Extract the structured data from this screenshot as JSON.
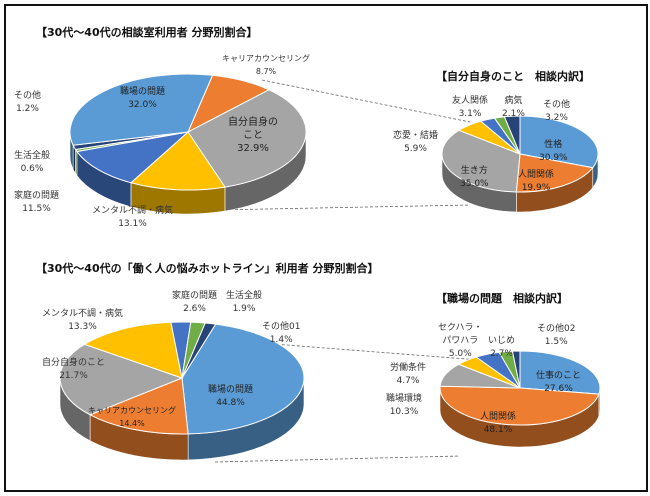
{
  "chart_data": [
    {
      "type": "pie",
      "title": "【30代～40代の相談室利用者 分野別割合】",
      "slices": [
        {
          "label": "キャリアカウンセリング",
          "value": 8.7,
          "pct": "8.7%",
          "color": "#ED7D31"
        },
        {
          "label": "自分自身のこと",
          "value": 32.9,
          "pct": "32.9%",
          "color": "#A5A5A5"
        },
        {
          "label": "メンタル不調・病気",
          "value": 13.1,
          "pct": "13.1%",
          "color": "#FFC000"
        },
        {
          "label": "家庭の問題",
          "value": 11.5,
          "pct": "11.5%",
          "color": "#4472C4"
        },
        {
          "label": "生活全般",
          "value": 0.6,
          "pct": "0.6%",
          "color": "#70AD47"
        },
        {
          "label": "その他",
          "value": 1.2,
          "pct": "1.2%",
          "color": "#264478"
        },
        {
          "label": "職場の問題",
          "value": 32.0,
          "pct": "32.0%",
          "color": "#5B9BD5"
        }
      ]
    },
    {
      "type": "pie",
      "title": "【自分自身のこと　相談内訳】",
      "slices": [
        {
          "label": "性格",
          "value": 30.9,
          "pct": "30.9%",
          "color": "#5B9BD5"
        },
        {
          "label": "人間関係",
          "value": 19.9,
          "pct": "19.9%",
          "color": "#ED7D31"
        },
        {
          "label": "生き方",
          "value": 35.0,
          "pct": "35.0%",
          "color": "#A5A5A5"
        },
        {
          "label": "恋愛・結婚",
          "value": 5.9,
          "pct": "5.9%",
          "color": "#FFC000"
        },
        {
          "label": "友人関係",
          "value": 3.1,
          "pct": "3.1%",
          "color": "#4472C4"
        },
        {
          "label": "病気",
          "value": 2.1,
          "pct": "2.1%",
          "color": "#70AD47"
        },
        {
          "label": "その他",
          "value": 3.2,
          "pct": "3.2%",
          "color": "#264478"
        }
      ]
    },
    {
      "type": "pie",
      "title": "【30代～40代の「働く人の悩みホットライン」利用者 分野別割合】",
      "slices": [
        {
          "label": "職場の問題",
          "value": 44.8,
          "pct": "44.8%",
          "color": "#5B9BD5"
        },
        {
          "label": "キャリアカウンセリング",
          "value": 14.4,
          "pct": "14.4%",
          "color": "#ED7D31"
        },
        {
          "label": "自分自身のこと",
          "value": 21.7,
          "pct": "21.7%",
          "color": "#A5A5A5"
        },
        {
          "label": "メンタル不調・病気",
          "value": 13.3,
          "pct": "13.3%",
          "color": "#FFC000"
        },
        {
          "label": "家庭の問題",
          "value": 2.6,
          "pct": "2.6%",
          "color": "#4472C4"
        },
        {
          "label": "生活全般",
          "value": 1.9,
          "pct": "1.9%",
          "color": "#70AD47"
        },
        {
          "label": "その他01",
          "value": 1.4,
          "pct": "1.4%",
          "color": "#264478"
        }
      ]
    },
    {
      "type": "pie",
      "title": "【職場の問題　相談内訳】",
      "slices": [
        {
          "label": "仕事のこと",
          "value": 27.6,
          "pct": "27.6%",
          "color": "#5B9BD5"
        },
        {
          "label": "人間関係",
          "value": 48.1,
          "pct": "48.1%",
          "color": "#ED7D31"
        },
        {
          "label": "職場環境",
          "value": 10.3,
          "pct": "10.3%",
          "color": "#A5A5A5"
        },
        {
          "label": "労働条件",
          "value": 4.7,
          "pct": "4.7%",
          "color": "#FFC000"
        },
        {
          "label": "セクハラ・パワハラ",
          "value": 5.0,
          "pct": "5.0%",
          "color": "#4472C4"
        },
        {
          "label": "いじめ",
          "value": 2.7,
          "pct": "2.7%",
          "color": "#70AD47"
        },
        {
          "label": "その他02",
          "value": 1.5,
          "pct": "1.5%",
          "color": "#264478"
        }
      ]
    }
  ],
  "label_lines": {
    "sekuhara_1": "セクハラ・",
    "sekuhara_2": "パワハラ",
    "jibun_1": "自分自身の",
    "jibun_2": "こと"
  }
}
